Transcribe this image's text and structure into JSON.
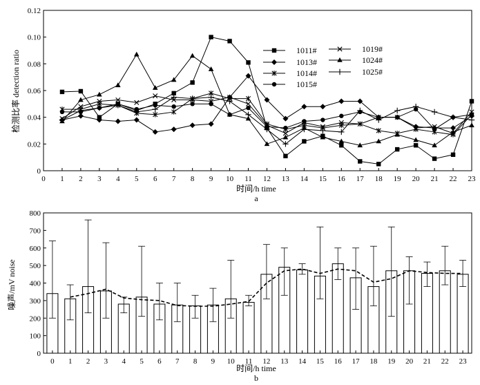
{
  "figure": {
    "label_a": "a",
    "label_b": "b"
  },
  "chart_data": [
    {
      "type": "line",
      "ylabel": "检测比率 detection ratio",
      "xlabel": "时间/h time",
      "ylim": [
        0,
        0.12
      ],
      "yticks": [
        "0",
        "0.02",
        "0.04",
        "0.06",
        "0.08",
        "0.10",
        "0.12"
      ],
      "xlim": [
        0,
        23
      ],
      "x": [
        1,
        2,
        3,
        4,
        5,
        6,
        7,
        8,
        9,
        10,
        11,
        12,
        13,
        14,
        15,
        16,
        17,
        18,
        19,
        20,
        21,
        22,
        23
      ],
      "legend_position": "top-right",
      "series": [
        {
          "name": "1011#",
          "marker": "square",
          "values": [
            0.059,
            0.0595,
            0.04,
            0.05,
            0.045,
            0.05,
            0.058,
            0.066,
            0.1,
            0.097,
            0.081,
            0.032,
            0.011,
            0.022,
            0.026,
            0.019,
            0.007,
            0.005,
            0.016,
            0.019,
            0.009,
            0.012,
            0.052
          ]
        },
        {
          "name": "1013#",
          "marker": "diamond",
          "values": [
            0.038,
            0.041,
            0.038,
            0.037,
            0.038,
            0.029,
            0.031,
            0.034,
            0.035,
            0.055,
            0.071,
            0.053,
            0.039,
            0.048,
            0.048,
            0.052,
            0.052,
            0.04,
            0.04,
            0.033,
            0.032,
            0.032,
            0.041
          ]
        },
        {
          "name": "1014#",
          "marker": "asterisk",
          "values": [
            0.046,
            0.046,
            0.05,
            0.049,
            0.043,
            0.042,
            0.044,
            0.054,
            0.058,
            0.054,
            0.054,
            0.035,
            0.031,
            0.034,
            0.032,
            0.034,
            0.035,
            0.03,
            0.028,
            0.031,
            0.029,
            0.027,
            0.042
          ]
        },
        {
          "name": "1015#",
          "marker": "circle",
          "values": [
            0.044,
            0.044,
            0.047,
            0.05,
            0.046,
            0.049,
            0.048,
            0.05,
            0.05,
            0.042,
            0.047,
            0.033,
            0.032,
            0.037,
            0.038,
            0.041,
            0.044,
            0.04,
            0.04,
            0.046,
            0.031,
            0.04,
            0.042
          ]
        },
        {
          "name": "1019#",
          "marker": "x",
          "values": [
            0.039,
            0.048,
            0.052,
            0.053,
            0.051,
            0.056,
            0.053,
            0.053,
            0.052,
            0.055,
            0.05,
            0.034,
            0.028,
            0.036,
            0.033,
            0.036,
            0.035,
            0.04,
            0.04,
            0.032,
            0.033,
            0.028,
            0.044
          ]
        },
        {
          "name": "1024#",
          "marker": "triangle",
          "values": [
            0.037,
            0.053,
            0.057,
            0.064,
            0.087,
            0.062,
            0.068,
            0.086,
            0.076,
            0.042,
            0.039,
            0.02,
            0.025,
            0.032,
            0.025,
            0.022,
            0.019,
            0.022,
            0.027,
            0.023,
            0.019,
            0.029,
            0.034
          ]
        },
        {
          "name": "1025#",
          "marker": "plus",
          "values": [
            0.038,
            0.045,
            0.047,
            0.049,
            0.044,
            0.046,
            0.055,
            0.054,
            0.055,
            0.052,
            0.042,
            0.031,
            0.02,
            0.031,
            0.03,
            0.029,
            0.045,
            0.038,
            0.045,
            0.048,
            0.044,
            0.04,
            0.038
          ]
        }
      ]
    },
    {
      "type": "bar",
      "ylabel": "噪声/mV noise",
      "xlabel": "时间/h time",
      "ylim": [
        0,
        800
      ],
      "yticks": [
        "0",
        "100",
        "200",
        "300",
        "400",
        "500",
        "600",
        "700",
        "800"
      ],
      "categories": [
        "0",
        "1",
        "2",
        "3",
        "4",
        "5",
        "6",
        "7",
        "8",
        "9",
        "10",
        "11",
        "12",
        "13",
        "14",
        "15",
        "16",
        "17",
        "18",
        "19",
        "20",
        "21",
        "22",
        "23"
      ],
      "values": [
        340,
        310,
        380,
        355,
        280,
        320,
        280,
        275,
        270,
        275,
        310,
        290,
        450,
        490,
        475,
        440,
        510,
        430,
        380,
        470,
        470,
        455,
        470,
        450
      ],
      "error_upper": [
        640,
        390,
        760,
        630,
        320,
        610,
        400,
        400,
        330,
        370,
        530,
        330,
        620,
        600,
        510,
        720,
        600,
        600,
        610,
        720,
        550,
        520,
        610,
        530
      ],
      "error_lower": [
        200,
        190,
        230,
        200,
        230,
        210,
        190,
        180,
        200,
        180,
        200,
        270,
        310,
        330,
        450,
        310,
        420,
        250,
        270,
        210,
        280,
        380,
        390,
        380
      ],
      "trend_line": [
        null,
        320,
        340,
        365,
        315,
        305,
        300,
        272,
        268,
        268,
        280,
        295,
        400,
        470,
        480,
        455,
        480,
        470,
        405,
        425,
        470,
        460,
        455,
        455
      ]
    }
  ]
}
